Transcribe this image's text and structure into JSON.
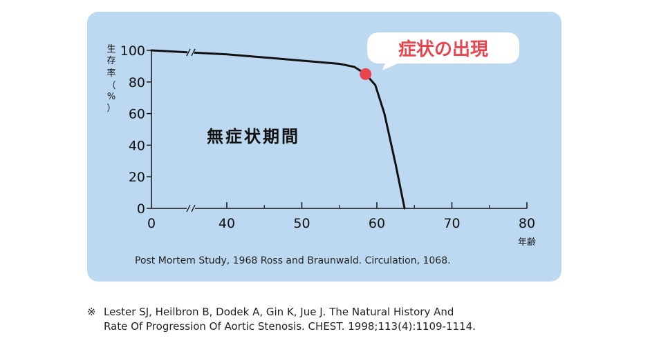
{
  "chart_data": {
    "type": "line",
    "ylabel_chars": [
      "生",
      "存",
      "率",
      "（",
      "%",
      "）"
    ],
    "xlabel": "年齢",
    "x_ticks": [
      "0",
      "40",
      "50",
      "60",
      "70",
      "80"
    ],
    "y_ticks": [
      "100",
      "80",
      "60",
      "40",
      "20",
      "0"
    ],
    "ylim": [
      0,
      100
    ],
    "x_axis_break": "//",
    "series": [
      {
        "points": [
          {
            "x": "0",
            "y": 100
          },
          {
            "x": 40,
            "y": 97.5
          },
          {
            "x": 45,
            "y": 95.5
          },
          {
            "x": 50,
            "y": 93.5
          },
          {
            "x": 55,
            "y": 91.5
          },
          {
            "x": 57,
            "y": 89.5
          },
          {
            "x": 58.5,
            "y": 85
          },
          {
            "x": 59.8,
            "y": 78
          },
          {
            "x": 61,
            "y": 60
          },
          {
            "x": 62.5,
            "y": 28
          },
          {
            "x": 63.7,
            "y": 0
          }
        ]
      }
    ],
    "marker": {
      "x": 58.5,
      "y": 85,
      "color": "#e9454f"
    },
    "callout": "症状の出現",
    "region_label": "無症状期間",
    "grid": false
  },
  "source_note": "Post Mortem Study, 1968  Ross and Braunwald. Circulation, 1068.",
  "reference": {
    "mark": "※",
    "line1": "Lester SJ, Heilbron B, Dodek A, Gin K, Jue J. The Natural History And",
    "line2": "Rate Of Progression Of Aortic Stenosis. CHEST. 1998;113(4):1109-1114."
  },
  "colors": {
    "panel": "#bdd9f1",
    "line": "#111111",
    "callout_text": "#e9454f",
    "marker": "#e9454f"
  }
}
